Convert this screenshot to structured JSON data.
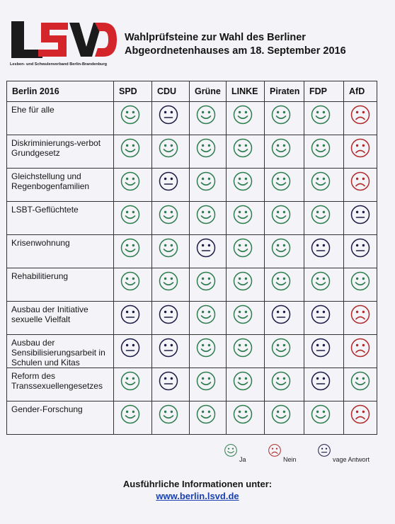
{
  "header": {
    "title_line1": "Wahlprüfsteine zur Wahl des Berliner",
    "title_line2": "Abgeordnetenhauses am 18. September 2016",
    "logo_subtitle": "Lesben- und Schwulenverband Berlin-Brandenburg"
  },
  "logo": {
    "text": "LSVD",
    "color_dark": "#1b1b1b",
    "color_red": "#d4252b"
  },
  "colors": {
    "ja": "#2e7d4f",
    "neutral": "#1c1c46",
    "nein": "#b02a2a"
  },
  "table": {
    "corner": "Berlin 2016",
    "parties": [
      "SPD",
      "CDU",
      "Grüne",
      "LINKE",
      "Piraten",
      "FDP",
      "AfD"
    ],
    "rows": [
      {
        "topic": "Ehe für alle",
        "ratings": [
          "ja",
          "neutral",
          "ja",
          "ja",
          "ja",
          "ja",
          "nein"
        ]
      },
      {
        "topic": "Diskriminierungs-verbot Grundgesetz",
        "ratings": [
          "ja",
          "ja",
          "ja",
          "ja",
          "ja",
          "ja",
          "nein"
        ]
      },
      {
        "topic": "Gleichstellung und Regenbogenfamilien",
        "ratings": [
          "ja",
          "neutral",
          "ja",
          "ja",
          "ja",
          "ja",
          "nein"
        ]
      },
      {
        "topic": "LSBT-Geflüchtete",
        "ratings": [
          "ja",
          "ja",
          "ja",
          "ja",
          "ja",
          "ja",
          "neutral"
        ]
      },
      {
        "topic": "Krisenwohnung",
        "ratings": [
          "ja",
          "ja",
          "neutral",
          "ja",
          "ja",
          "neutral",
          "neutral"
        ]
      },
      {
        "topic": "Rehabilitierung",
        "ratings": [
          "ja",
          "ja",
          "ja",
          "ja",
          "ja",
          "ja",
          "ja"
        ]
      },
      {
        "topic": "Ausbau der Initiative sexuelle Vielfalt",
        "ratings": [
          "neutral",
          "neutral",
          "ja",
          "ja",
          "neutral",
          "neutral",
          "nein"
        ]
      },
      {
        "topic": "Ausbau der Sensibilisierungsarbeit in Schulen und Kitas",
        "ratings": [
          "neutral",
          "neutral",
          "ja",
          "ja",
          "ja",
          "neutral",
          "nein"
        ]
      },
      {
        "topic": "Reform des Transsexuellengesetzes",
        "ratings": [
          "ja",
          "neutral",
          "ja",
          "ja",
          "ja",
          "neutral",
          "ja"
        ]
      },
      {
        "topic": "Gender-Forschung",
        "ratings": [
          "ja",
          "ja",
          "ja",
          "ja",
          "ja",
          "ja",
          "nein"
        ]
      }
    ]
  },
  "legend": {
    "ja": "Ja",
    "nein": "Nein",
    "neutral": "vage Antwort"
  },
  "footer": {
    "info": "Ausführliche Informationen unter:",
    "link": "www.berlin.lsvd.de"
  }
}
